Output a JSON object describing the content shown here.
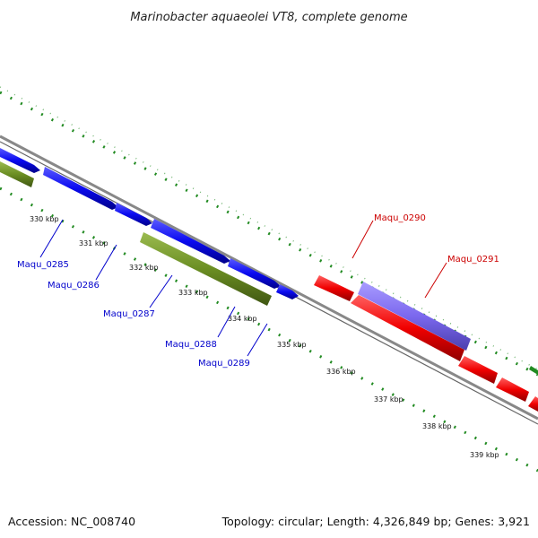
{
  "title": "Marinobacter aquaeolei VT8, complete genome",
  "footer": {
    "accession": "Accession: NC_008740",
    "summary": "Topology: circular; Length: 4,326,849 bp; Genes: 3,921"
  },
  "ticks": [
    "330 kbp",
    "331 kbp",
    "332 kbp",
    "333 kbp",
    "334 kbp",
    "335 kbp",
    "336 kbp",
    "337 kbp",
    "338 kbp",
    "339 kbp"
  ],
  "genes": [
    {
      "label": "Maqu_0285",
      "color": "#0000cc"
    },
    {
      "label": "Maqu_0286",
      "color": "#0000cc"
    },
    {
      "label": "Maqu_0287",
      "color": "#0000cc"
    },
    {
      "label": "Maqu_0288",
      "color": "#0000cc"
    },
    {
      "label": "Maqu_0289",
      "color": "#0000cc"
    },
    {
      "label": "Maqu_0290",
      "color": "#cc0000"
    },
    {
      "label": "Maqu_0291",
      "color": "#cc0000"
    }
  ],
  "colors": {
    "forward_cds": "#1010ee",
    "reverse_cds": "#ee1010",
    "rna": "#6b8e23",
    "feature": "#7b68ee",
    "backbone": "#888888",
    "gc_skew": "#228b22"
  }
}
